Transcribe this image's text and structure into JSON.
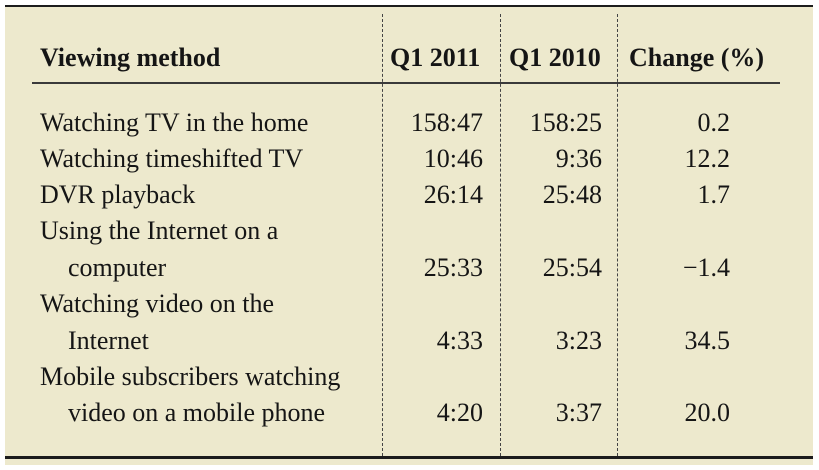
{
  "table": {
    "headers": [
      "Viewing method",
      "Q1 2011",
      "Q1 2010",
      "Change (%)"
    ],
    "rows": [
      {
        "method_lines": [
          "Watching TV in the home"
        ],
        "q1_2011": "158:47",
        "q1_2010": "158:25",
        "change": "0.2"
      },
      {
        "method_lines": [
          "Watching timeshifted TV"
        ],
        "q1_2011": "10:46",
        "q1_2010": "9:36",
        "change": "12.2"
      },
      {
        "method_lines": [
          "DVR playback"
        ],
        "q1_2011": "26:14",
        "q1_2010": "25:48",
        "change": "1.7"
      },
      {
        "method_lines": [
          "Using the Internet on a",
          "computer"
        ],
        "q1_2011": "25:33",
        "q1_2010": "25:54",
        "change": "−1.4"
      },
      {
        "method_lines": [
          "Watching video on the",
          "Internet"
        ],
        "q1_2011": "4:33",
        "q1_2010": "3:23",
        "change": "34.5"
      },
      {
        "method_lines": [
          "Mobile subscribers watching",
          "video on a mobile phone"
        ],
        "q1_2011": "4:20",
        "q1_2010": "3:37",
        "change": "20.0"
      }
    ]
  },
  "colors": {
    "background": "#ede9cd",
    "rule": "#1c1c1c",
    "text": "#151515"
  }
}
